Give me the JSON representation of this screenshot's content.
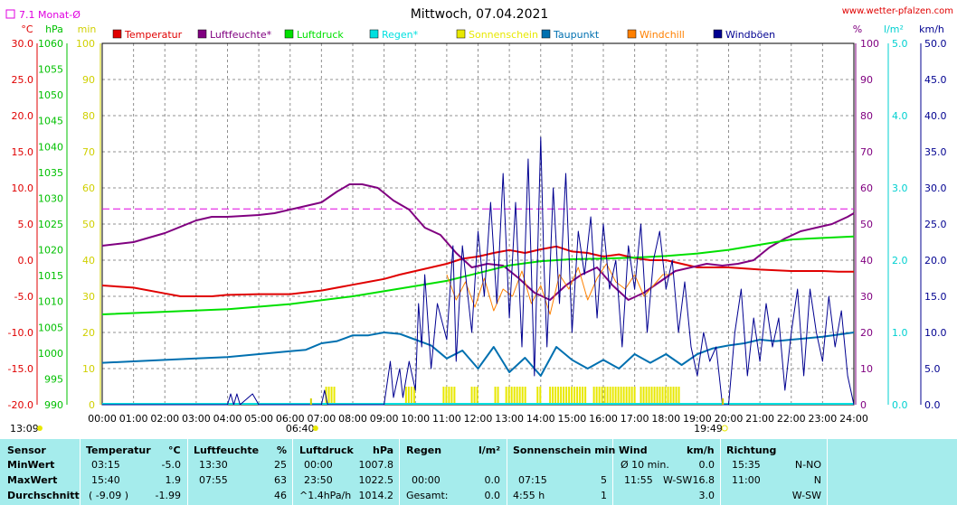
{
  "header": {
    "title": "Mittwoch, 07.04.2021",
    "site": "www.wetter-pfalzen.com",
    "avg_label": "7.1 Monat-Ø"
  },
  "chart_data": {
    "type": "line",
    "title": "Mittwoch, 07.04.2021",
    "x_labels": [
      "00:00",
      "01:00",
      "02:00",
      "03:00",
      "04:00",
      "05:00",
      "06:00",
      "07:00",
      "08:00",
      "09:00",
      "10:00",
      "11:00",
      "12:00",
      "13:00",
      "14:00",
      "15:00",
      "16:00",
      "17:00",
      "18:00",
      "19:00",
      "20:00",
      "21:00",
      "22:00",
      "23:00",
      "24:00"
    ],
    "xlim": [
      0,
      24
    ],
    "sunrise": "06:40",
    "sunset": "19:49",
    "moonrise": "13:09",
    "grid": true,
    "axes": {
      "temp": {
        "unit": "°C",
        "min": -20,
        "max": 30,
        "ticks": [
          "-20.0",
          "-15.0",
          "-10.0",
          "-5.0",
          "0.0",
          "5.0",
          "10.0",
          "15.0",
          "20.0",
          "25.0",
          "30.0"
        ]
      },
      "press": {
        "unit": "hPa",
        "min": 990,
        "max": 1060,
        "ticks": [
          "990",
          "995",
          "1000",
          "1005",
          "1010",
          "1015",
          "1020",
          "1025",
          "1030",
          "1035",
          "1040",
          "1045",
          "1050",
          "1055",
          "1060"
        ]
      },
      "sun": {
        "unit": "min",
        "min": 0,
        "max": 100,
        "ticks": [
          "0",
          "10",
          "20",
          "30",
          "40",
          "50",
          "60",
          "70",
          "80",
          "90",
          "100"
        ]
      },
      "hum": {
        "unit": "%",
        "min": 0,
        "max": 100,
        "ticks": [
          "0",
          "10",
          "20",
          "30",
          "40",
          "50",
          "60",
          "70",
          "80",
          "90",
          "100"
        ]
      },
      "rain": {
        "unit": "l/m²",
        "min": 0,
        "max": 5,
        "ticks": [
          "0.0",
          "1.0",
          "2.0",
          "3.0",
          "4.0",
          "5.0"
        ]
      },
      "wind": {
        "unit": "km/h",
        "min": 0,
        "max": 50,
        "ticks": [
          "0.0",
          "5.0",
          "10.0",
          "15.0",
          "20.0",
          "25.0",
          "30.0",
          "35.0",
          "40.0",
          "45.0",
          "50.0"
        ]
      }
    },
    "month_avg_temp": 7.1,
    "legend": [
      {
        "name": "Temperatur",
        "color": "#e00000"
      },
      {
        "name": "Luftfeuchte*",
        "color": "#800080"
      },
      {
        "name": "Luftdruck",
        "color": "#00e000"
      },
      {
        "name": "Regen*",
        "color": "#00e0e0"
      },
      {
        "name": "Sonnenschein",
        "color": "#e8e800"
      },
      {
        "name": "Taupunkt",
        "color": "#0070b0"
      },
      {
        "name": "Windchill",
        "color": "#ff8000"
      },
      {
        "name": "Windböen",
        "color": "#000090"
      }
    ],
    "series": [
      {
        "name": "Temperatur",
        "axis": "temp",
        "color": "#e00000",
        "x": [
          0,
          1,
          2,
          2.5,
          3,
          3.5,
          4,
          5,
          6,
          7,
          8,
          8.5,
          9,
          9.5,
          10,
          10.5,
          11,
          11.5,
          12,
          12.5,
          13,
          13.5,
          14,
          14.5,
          15,
          15.5,
          16,
          16.5,
          17,
          17.5,
          18,
          18.5,
          19,
          19.5,
          20,
          21,
          22,
          23,
          23.5,
          24
        ],
        "y": [
          -3.5,
          -3.8,
          -4.6,
          -5.0,
          -5.0,
          -5.0,
          -4.8,
          -4.7,
          -4.7,
          -4.2,
          -3.4,
          -3.0,
          -2.6,
          -2.0,
          -1.5,
          -1.0,
          -0.5,
          0.2,
          0.5,
          1.0,
          1.4,
          1.0,
          1.5,
          1.9,
          1.2,
          1.0,
          0.5,
          0.8,
          0.3,
          0.0,
          0.0,
          -0.5,
          -1.0,
          -1.0,
          -1.0,
          -1.3,
          -1.5,
          -1.5,
          -1.6,
          -1.6
        ]
      },
      {
        "name": "Luftfeuchte*",
        "axis": "hum",
        "color": "#800080",
        "x": [
          0,
          1,
          2,
          3,
          3.5,
          4,
          5,
          5.5,
          6,
          7,
          7.5,
          7.9,
          8.3,
          8.8,
          9.3,
          9.8,
          10.3,
          10.8,
          11.3,
          11.8,
          12.3,
          12.8,
          13.3,
          13.8,
          14.3,
          14.8,
          15.3,
          15.8,
          16.3,
          16.8,
          17.3,
          17.8,
          18.3,
          18.8,
          19.3,
          19.8,
          20.3,
          20.8,
          21.3,
          21.8,
          22.3,
          22.8,
          23.3,
          23.8,
          24
        ],
        "y": [
          44,
          45,
          47.5,
          51,
          52,
          52,
          52.5,
          53,
          54,
          56,
          59,
          61,
          61,
          60,
          56.5,
          54,
          49,
          47,
          42,
          38,
          39,
          38.5,
          35,
          31,
          29,
          33,
          36,
          38,
          33,
          29,
          31,
          34,
          37,
          38,
          39,
          38.5,
          39,
          40,
          43.5,
          46,
          48,
          49,
          50,
          52,
          53
        ]
      },
      {
        "name": "Luftdruck",
        "axis": "press",
        "color": "#00e000",
        "x": [
          0,
          2,
          4,
          6,
          8,
          10,
          11,
          12,
          13,
          14,
          15,
          16,
          17,
          18,
          19,
          20,
          21,
          22,
          23,
          24
        ],
        "y": [
          1007.5,
          1008.0,
          1008.5,
          1009.5,
          1011.0,
          1013.0,
          1014.0,
          1015.5,
          1017.0,
          1017.8,
          1018.2,
          1018.3,
          1018.5,
          1018.8,
          1019.3,
          1020.0,
          1021.0,
          1022.0,
          1022.3,
          1022.6
        ]
      },
      {
        "name": "Taupunkt",
        "axis": "temp",
        "color": "#0070b0",
        "x": [
          0,
          1,
          2,
          3,
          4,
          5,
          6,
          6.5,
          7,
          7.5,
          8,
          8.5,
          9,
          9.5,
          10,
          10.5,
          11,
          11.5,
          12,
          12.5,
          13,
          13.5,
          14,
          14.5,
          15,
          15.5,
          16,
          16.5,
          17,
          17.5,
          18,
          18.5,
          19,
          19.5,
          20,
          20.5,
          21,
          21.5,
          22,
          22.5,
          23,
          23.5,
          24
        ],
        "y": [
          -14.2,
          -14.0,
          -13.8,
          -13.6,
          -13.4,
          -13.0,
          -12.6,
          -12.4,
          -11.5,
          -11.2,
          -10.4,
          -10.4,
          -10.0,
          -10.2,
          -11.0,
          -11.8,
          -13.6,
          -12.5,
          -15.0,
          -12.0,
          -15.5,
          -13.5,
          -16.0,
          -12.0,
          -13.8,
          -15.0,
          -13.8,
          -15.0,
          -13.0,
          -14.2,
          -13.0,
          -14.5,
          -13.0,
          -12.2,
          -11.8,
          -11.5,
          -11.0,
          -11.2,
          -11.0,
          -10.8,
          -10.6,
          -10.3,
          -10.0
        ]
      },
      {
        "name": "Windchill",
        "axis": "temp",
        "color": "#ff8000",
        "x": [
          11,
          11.3,
          11.6,
          11.9,
          12.2,
          12.5,
          12.8,
          13.1,
          13.4,
          13.7,
          14.0,
          14.3,
          14.6,
          14.9,
          15.2,
          15.5,
          15.8,
          16.1,
          16.4,
          16.7,
          17.0,
          17.3,
          17.6,
          17.9,
          18.2
        ],
        "y": [
          -2.0,
          -5.5,
          -3.0,
          -6.5,
          -2.5,
          -7.0,
          -4.0,
          -5.0,
          -1.5,
          -6.0,
          -3.5,
          -7.5,
          -2.0,
          -4.0,
          -1.0,
          -5.5,
          -2.5,
          -0.5,
          -3.0,
          -4.0,
          -2.0,
          -5.0,
          -3.5,
          -2.0,
          -2.0
        ]
      },
      {
        "name": "Windböen",
        "axis": "wind",
        "color": "#000090",
        "x": [
          0,
          4,
          4.1,
          4.2,
          4.3,
          4.4,
          4.8,
          5.0,
          5.3,
          7.0,
          7.1,
          7.2,
          8.0,
          9.0,
          9.2,
          9.3,
          9.5,
          9.6,
          9.8,
          10.0,
          10.1,
          10.2,
          10.3,
          10.5,
          10.7,
          11.0,
          11.2,
          11.3,
          11.5,
          11.8,
          12.0,
          12.2,
          12.4,
          12.6,
          12.8,
          13.0,
          13.2,
          13.4,
          13.6,
          13.8,
          14.0,
          14.1,
          14.2,
          14.4,
          14.6,
          14.8,
          15.0,
          15.2,
          15.4,
          15.6,
          15.8,
          16.0,
          16.2,
          16.4,
          16.6,
          16.8,
          17.0,
          17.2,
          17.4,
          17.6,
          17.8,
          18.0,
          18.2,
          18.4,
          18.6,
          18.8,
          19.0,
          19.2,
          19.4,
          19.6,
          19.8,
          20.0,
          20.2,
          20.4,
          20.6,
          20.8,
          21.0,
          21.2,
          21.4,
          21.6,
          21.8,
          22.0,
          22.2,
          22.4,
          22.6,
          22.8,
          23.0,
          23.2,
          23.4,
          23.6,
          23.8,
          24.0
        ],
        "y": [
          0,
          0,
          1.5,
          0,
          1.5,
          0,
          1.5,
          0,
          0,
          0,
          2,
          0,
          0,
          0,
          6,
          1,
          5,
          1,
          6,
          2,
          14,
          8,
          18,
          5,
          14,
          9,
          22,
          6,
          22,
          10,
          24,
          15,
          28,
          14,
          32,
          12,
          28,
          8,
          34,
          4,
          37,
          20,
          8,
          30,
          14,
          32,
          10,
          24,
          18,
          26,
          12,
          25,
          16,
          20,
          8,
          22,
          16,
          25,
          10,
          20,
          24,
          16,
          20,
          10,
          17,
          8,
          4,
          10,
          6,
          8,
          0,
          0,
          10,
          16,
          4,
          12,
          6,
          14,
          8,
          12,
          2,
          10,
          16,
          4,
          16,
          10,
          6,
          15,
          8,
          13,
          4,
          0
        ]
      }
    ],
    "sunshine_intervals": [
      [
        7.15,
        7.45
      ],
      [
        9.7,
        10.0
      ],
      [
        10.9,
        11.3
      ],
      [
        11.8,
        12.0
      ],
      [
        12.55,
        12.7
      ],
      [
        12.9,
        13.55
      ],
      [
        13.9,
        14.0
      ],
      [
        14.3,
        15.45
      ],
      [
        15.7,
        17.0
      ],
      [
        17.2,
        18.45
      ]
    ]
  },
  "stats": {
    "headers": {
      "sensor": "Sensor",
      "temp": "Temperatur",
      "temp_unit": "°C",
      "hum": "Luftfeuchte",
      "hum_unit": "%",
      "press": "Luftdruck",
      "press_unit": "hPa",
      "rain": "Regen",
      "rain_unit": "l/m²",
      "sun": "Sonnenschein min",
      "wind": "Wind",
      "wind_unit": "km/h",
      "dir": "Richtung"
    },
    "rows": [
      {
        "label": "MinWert",
        "temp_time": "03:15",
        "temp_val": "-5.0",
        "hum_time": "13:30",
        "hum_val": "25",
        "press_time": "00:00",
        "press_val": "1007.8",
        "rain_time": "",
        "rain_val": "",
        "sun_time": "",
        "sun_val": "",
        "wind_time": "Ø 10 min.",
        "wind_dir": "",
        "wind_val": "0.0",
        "dir_time": "15:35",
        "dir_val": "N-NO"
      },
      {
        "label": "MaxWert",
        "temp_time": "15:40",
        "temp_val": "1.9",
        "hum_time": "07:55",
        "hum_val": "63",
        "press_time": "23:50",
        "press_val": "1022.5",
        "rain_time": "00:00",
        "rain_val": "0.0",
        "sun_time": "07:15",
        "sun_val": "5",
        "wind_time": "11:55",
        "wind_dir": "W-SW",
        "wind_val": "16.8",
        "dir_time": "11:00",
        "dir_val": "N"
      },
      {
        "label": "Durchschnitt",
        "temp_time": "( -9.09 )",
        "temp_val": "-1.99",
        "hum_time": "",
        "hum_val": "46",
        "press_time": "^1.4hPa/h",
        "press_val": "1014.2",
        "rain_time": "Gesamt:",
        "rain_val": "0.0",
        "sun_time": "4:55 h",
        "sun_val": "1",
        "wind_time": "",
        "wind_dir": "",
        "wind_val": "3.0",
        "dir_time": "",
        "dir_val": "W-SW"
      }
    ]
  }
}
